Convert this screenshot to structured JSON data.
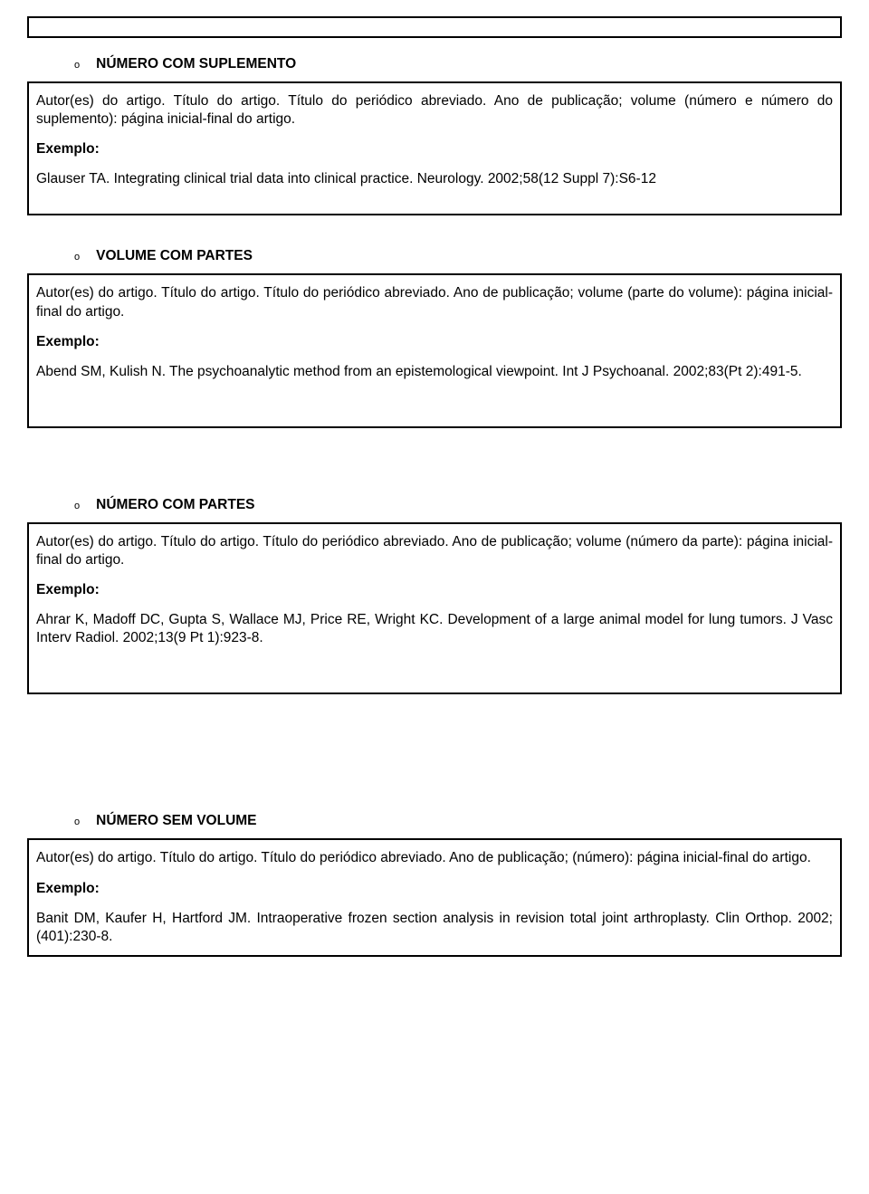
{
  "sections": [
    {
      "title": "NÚMERO COM SUPLEMENTO",
      "format": "Autor(es) do artigo. Título do artigo. Título do periódico abreviado. Ano de publicação; volume (número e número do suplemento): página inicial-final do artigo.",
      "label": "Exemplo:",
      "example": "Glauser TA. Integrating clinical trial data into clinical practice. Neurology. 2002;58(12 Suppl 7):S6-12"
    },
    {
      "title": "VOLUME COM PARTES",
      "format": "Autor(es) do artigo. Título do artigo. Título do periódico abreviado. Ano de publicação; volume (parte do volume): página inicial-final do artigo.",
      "label": "Exemplo:",
      "example": "Abend SM, Kulish N. The psychoanalytic method from an epistemological viewpoint. Int J Psychoanal. 2002;83(Pt 2):491-5."
    },
    {
      "title": "NÚMERO COM PARTES",
      "format": "Autor(es) do artigo. Título do artigo. Título do periódico abreviado. Ano de publicação; volume (número da parte): página inicial-final do artigo.",
      "label": "Exemplo:",
      "example": "Ahrar K, Madoff DC, Gupta S, Wallace MJ, Price RE, Wright KC. Development of a large animal model for lung tumors. J Vasc Interv Radiol. 2002;13(9 Pt 1):923-8."
    },
    {
      "title": "NÚMERO SEM VOLUME",
      "format": "Autor(es) do artigo. Título do artigo. Título do periódico abreviado. Ano de publicação; (número): página inicial-final do artigo.",
      "label": "Exemplo:",
      "example": "Banit DM, Kaufer H, Hartford JM. Intraoperative frozen section analysis in revision total joint arthroplasty. Clin Orthop. 2002;(401):230-8."
    }
  ]
}
